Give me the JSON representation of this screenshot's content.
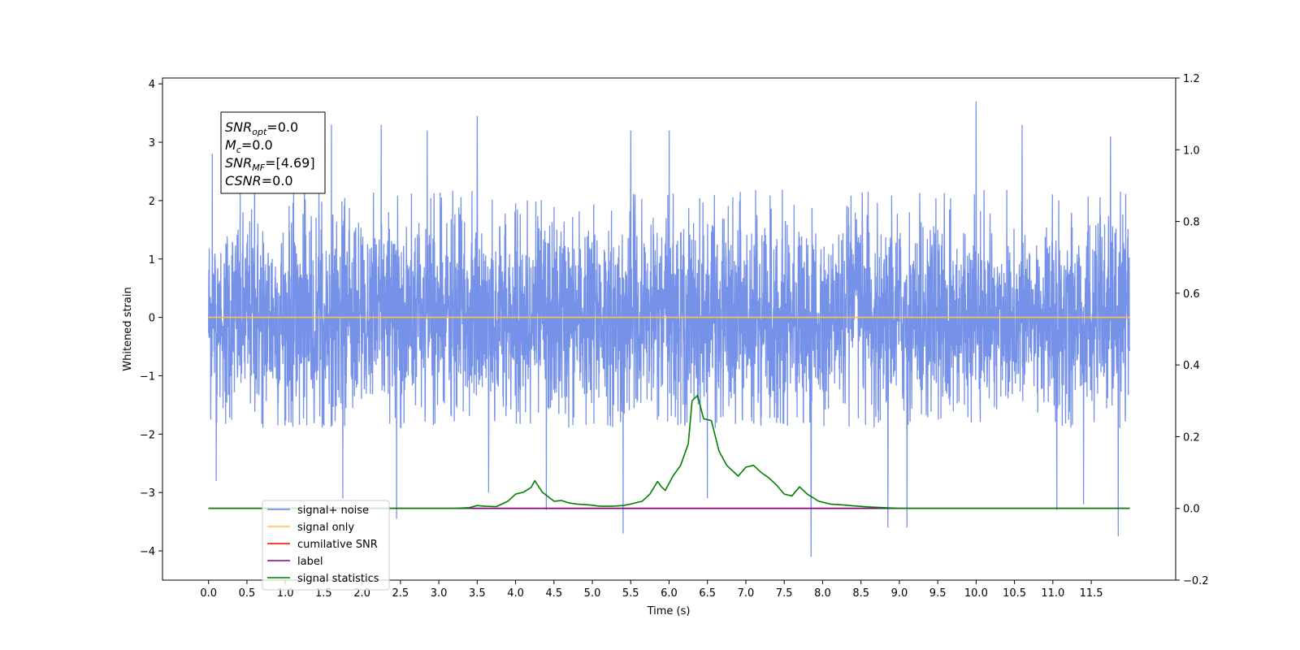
{
  "chart_data": {
    "type": "line",
    "title": "",
    "xlabel": "Time (s)",
    "ylabel": "Whitened strain",
    "xlim": [
      -0.6,
      12.6
    ],
    "ylim": [
      -4.5,
      4.1
    ],
    "y2lim": [
      -0.2,
      1.2
    ],
    "x_ticks": [
      0.0,
      0.5,
      1.0,
      1.5,
      2.0,
      2.5,
      3.0,
      3.5,
      4.0,
      4.5,
      5.0,
      5.5,
      6.0,
      6.5,
      7.0,
      7.5,
      8.0,
      8.5,
      9.0,
      9.5,
      10.0,
      10.5,
      11.0,
      11.5
    ],
    "x_tick_labels": [
      "0.0",
      "0.5",
      "1.0",
      "1.5",
      "2.0",
      "2.5",
      "3.0",
      "3.5",
      "4.0",
      "4.5",
      "5.0",
      "5.5",
      "6.0",
      "6.5",
      "7.0",
      "7.5",
      "8.0",
      "8.5",
      "9.0",
      "9.5",
      "10.0",
      "10.5",
      "11.0",
      "11.5"
    ],
    "y_ticks": [
      -4,
      -3,
      -2,
      -1,
      0,
      1,
      2,
      3,
      4
    ],
    "y_tick_labels": [
      "−4",
      "−3",
      "−2",
      "−1",
      "0",
      "1",
      "2",
      "3",
      "4"
    ],
    "y2_ticks": [
      -0.2,
      0.0,
      0.2,
      0.4,
      0.6,
      0.8,
      1.0,
      1.2
    ],
    "y2_tick_labels": [
      "−0.2",
      "0.0",
      "0.2",
      "0.4",
      "0.6",
      "0.8",
      "1.0",
      "1.2"
    ],
    "grid": false,
    "legend_position": "lower-left",
    "series": [
      {
        "name": "signal+ noise",
        "color": "#6a89e6",
        "axis": "left",
        "x_range": [
          0.0,
          12.0
        ],
        "typical_amplitude": [
          -1.9,
          2.2
        ],
        "peaks": [
          {
            "x": 0.05,
            "y": 2.8
          },
          {
            "x": 0.1,
            "y": -2.8
          },
          {
            "x": 0.6,
            "y": 3.1
          },
          {
            "x": 1.25,
            "y": 3.3
          },
          {
            "x": 1.6,
            "y": 3.3
          },
          {
            "x": 1.75,
            "y": -3.1
          },
          {
            "x": 2.25,
            "y": 3.3
          },
          {
            "x": 2.45,
            "y": -3.45
          },
          {
            "x": 2.85,
            "y": 3.2
          },
          {
            "x": 3.5,
            "y": 3.45
          },
          {
            "x": 3.65,
            "y": -3.0
          },
          {
            "x": 4.4,
            "y": -3.3
          },
          {
            "x": 5.4,
            "y": -3.7
          },
          {
            "x": 5.5,
            "y": 3.2
          },
          {
            "x": 6.0,
            "y": 3.2
          },
          {
            "x": 6.5,
            "y": -3.1
          },
          {
            "x": 7.85,
            "y": -4.1
          },
          {
            "x": 8.85,
            "y": -3.6
          },
          {
            "x": 9.1,
            "y": -3.6
          },
          {
            "x": 10.0,
            "y": 3.7
          },
          {
            "x": 10.6,
            "y": 3.3
          },
          {
            "x": 11.05,
            "y": -3.3
          },
          {
            "x": 11.4,
            "y": -3.2
          },
          {
            "x": 11.75,
            "y": 3.1
          },
          {
            "x": 11.85,
            "y": -3.75
          }
        ]
      },
      {
        "name": "signal only",
        "color": "#ffbf50",
        "axis": "left",
        "x": [
          0.0,
          12.0
        ],
        "y": [
          0.0,
          0.0
        ]
      },
      {
        "name": "cumilative SNR",
        "color": "#ff0000",
        "axis": "right",
        "x": [
          0.0,
          12.0
        ],
        "y": [
          0.0,
          0.0
        ]
      },
      {
        "name": "label",
        "color": "#800080",
        "axis": "right",
        "x": [
          0.0,
          12.0
        ],
        "y": [
          0.0,
          0.0
        ]
      },
      {
        "name": "signal statistics",
        "color": "#008000",
        "axis": "right",
        "x": [
          0.0,
          3.2,
          3.4,
          3.5,
          3.6,
          3.75,
          3.9,
          4.0,
          4.1,
          4.2,
          4.25,
          4.35,
          4.5,
          4.6,
          4.7,
          4.8,
          4.95,
          5.1,
          5.25,
          5.4,
          5.5,
          5.65,
          5.75,
          5.85,
          5.9,
          5.95,
          6.05,
          6.15,
          6.25,
          6.3,
          6.37,
          6.45,
          6.55,
          6.65,
          6.75,
          6.9,
          7.0,
          7.1,
          7.2,
          7.3,
          7.4,
          7.5,
          7.6,
          7.7,
          7.8,
          7.95,
          8.1,
          8.25,
          8.4,
          8.6,
          8.8,
          9.0,
          12.0
        ],
        "y": [
          0.0,
          0.0,
          0.002,
          0.008,
          0.006,
          0.005,
          0.02,
          0.04,
          0.045,
          0.058,
          0.077,
          0.045,
          0.02,
          0.022,
          0.015,
          0.012,
          0.01,
          0.006,
          0.006,
          0.008,
          0.012,
          0.02,
          0.04,
          0.075,
          0.06,
          0.05,
          0.09,
          0.12,
          0.18,
          0.3,
          0.315,
          0.25,
          0.245,
          0.16,
          0.12,
          0.09,
          0.115,
          0.12,
          0.1,
          0.085,
          0.065,
          0.04,
          0.035,
          0.06,
          0.04,
          0.02,
          0.012,
          0.01,
          0.007,
          0.004,
          0.002,
          0.0,
          0.0
        ]
      }
    ],
    "annotations": [
      {
        "base": "SNR",
        "sub": "opt",
        "rest": "=0.0"
      },
      {
        "base": "M",
        "sub": "c",
        "rest": "=0.0"
      },
      {
        "base": "SNR",
        "sub": "MF",
        "rest": "=[4.69]"
      },
      {
        "base": "CSNR",
        "sub": "",
        "rest": "=0.0"
      }
    ]
  }
}
